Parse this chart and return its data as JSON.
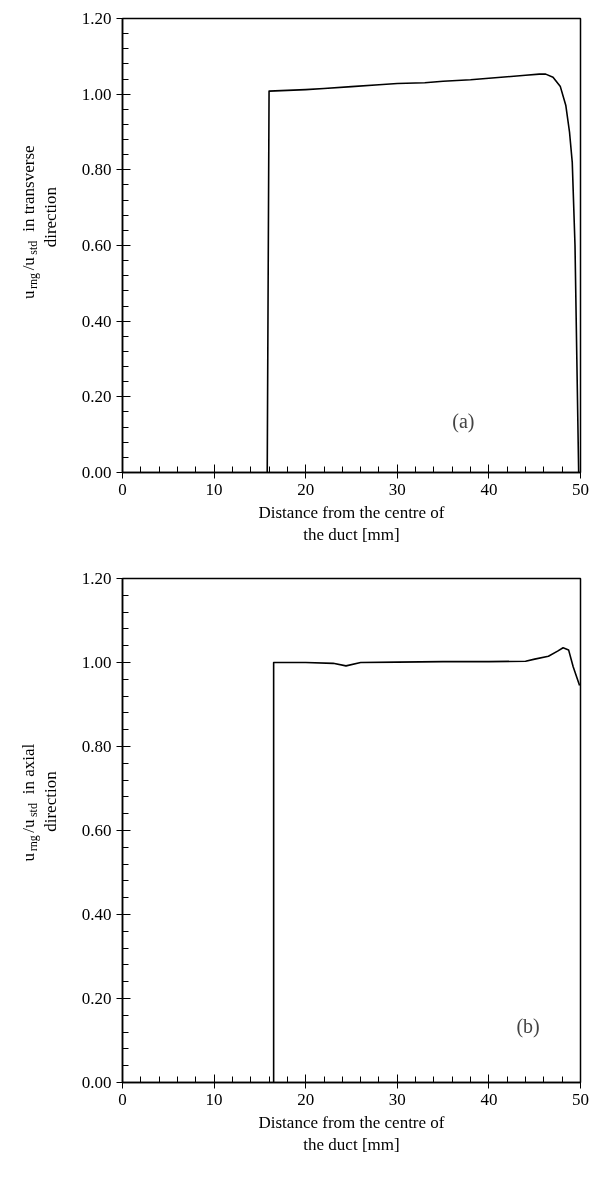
{
  "chart_data": [
    {
      "type": "line",
      "xlabel": "Distance from the centre of the duct [mm]",
      "ylabel": "u$_{rng}$/u$_{std}$ in transverse direction",
      "annotations": [
        "(a)"
      ],
      "xlim": [
        0,
        50
      ],
      "ylim": [
        0,
        1.2
      ],
      "xticks": [
        0,
        10,
        20,
        30,
        40,
        50
      ],
      "yticks": [
        {
          "value": 0,
          "label": "0.00"
        },
        {
          "value": 0.2,
          "label": "0.20"
        },
        {
          "value": 0.4,
          "label": "0.40"
        },
        {
          "value": 0.6,
          "label": "0.60"
        },
        {
          "value": 0.8,
          "label": "0.80"
        },
        {
          "value": 1.0,
          "label": "1.00"
        },
        {
          "value": 1.2,
          "label": "1.20"
        }
      ],
      "grid": false,
      "marker": "none",
      "line_style": "solid",
      "series": [
        {
          "color": "#000000",
          "x": [
            15.8,
            16.0,
            18,
            20,
            22,
            25,
            28,
            30,
            33,
            35,
            38,
            40,
            42,
            44,
            45.5,
            46.2,
            47,
            47.8,
            48.4,
            48.8,
            49.1,
            49.4,
            49.6,
            49.8
          ],
          "values": [
            0,
            1.008,
            1.01,
            1.012,
            1.015,
            1.02,
            1.025,
            1.028,
            1.03,
            1.034,
            1.038,
            1.042,
            1.046,
            1.05,
            1.053,
            1.053,
            1.045,
            1.02,
            0.97,
            0.9,
            0.82,
            0.6,
            0.3,
            0
          ]
        }
      ]
    },
    {
      "type": "line",
      "xlabel": "Distance from the centre of the duct [mm]",
      "ylabel": "u$_{rng}$/u$_{std}$ in axial direction",
      "annotations": [
        "(b)"
      ],
      "xlim": [
        0,
        50
      ],
      "ylim": [
        0,
        1.2
      ],
      "xticks": [
        0,
        10,
        20,
        30,
        40,
        50
      ],
      "yticks": [
        {
          "value": 0,
          "label": "0.00"
        },
        {
          "value": 0.2,
          "label": "0.20"
        },
        {
          "value": 0.4,
          "label": "0.40"
        },
        {
          "value": 0.6,
          "label": "0.60"
        },
        {
          "value": 0.8,
          "label": "0.80"
        },
        {
          "value": 1.0,
          "label": "1.00"
        },
        {
          "value": 1.2,
          "label": "1.20"
        }
      ],
      "grid": false,
      "marker": "none",
      "line_style": "solid",
      "series": [
        {
          "color": "#000000",
          "x": [
            16.5,
            16.5,
            20,
            23,
            24.4,
            26,
            30,
            35,
            40,
            44,
            45,
            46.5,
            47.5,
            48.1,
            48.7,
            49.2,
            49.9
          ],
          "values": [
            0,
            1.0,
            1.0,
            0.998,
            0.992,
            1.0,
            1.001,
            1.002,
            1.002,
            1.003,
            1.008,
            1.015,
            1.027,
            1.035,
            1.03,
            0.99,
            0.945
          ]
        }
      ]
    }
  ]
}
